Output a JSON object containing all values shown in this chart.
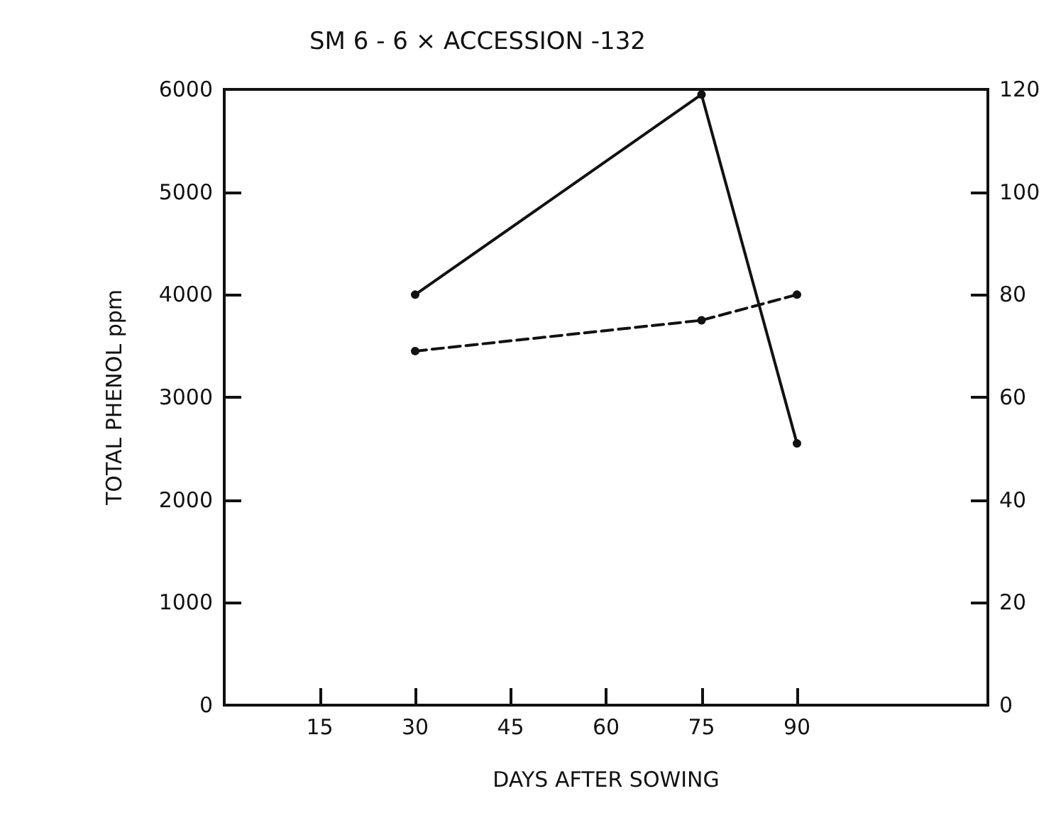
{
  "chart_data": {
    "type": "line",
    "title": "SM 6 - 6 × ACCESSION -132",
    "xlabel": "DAYS AFTER SOWING",
    "ylabel": "TOTAL PHENOL ppm",
    "x": [
      30,
      75,
      90
    ],
    "series": [
      {
        "color": "#111111",
        "values": [
          4000,
          5950,
          2550
        ],
        "line_style": "solid"
      },
      {
        "color": "#111111",
        "values": [
          3450,
          3750,
          4000
        ],
        "line_style": "dashed"
      }
    ],
    "xlim": [
      0,
      120
    ],
    "xticks": [
      15,
      30,
      45,
      60,
      75,
      90
    ],
    "ylim": [
      0,
      6000
    ],
    "yticks": [
      0,
      1000,
      2000,
      3000,
      4000,
      5000,
      6000
    ],
    "y2lim": [
      0,
      120
    ],
    "y2ticks": [
      0,
      20,
      40,
      60,
      80,
      100,
      120
    ],
    "grid": false,
    "marker": "circle"
  }
}
